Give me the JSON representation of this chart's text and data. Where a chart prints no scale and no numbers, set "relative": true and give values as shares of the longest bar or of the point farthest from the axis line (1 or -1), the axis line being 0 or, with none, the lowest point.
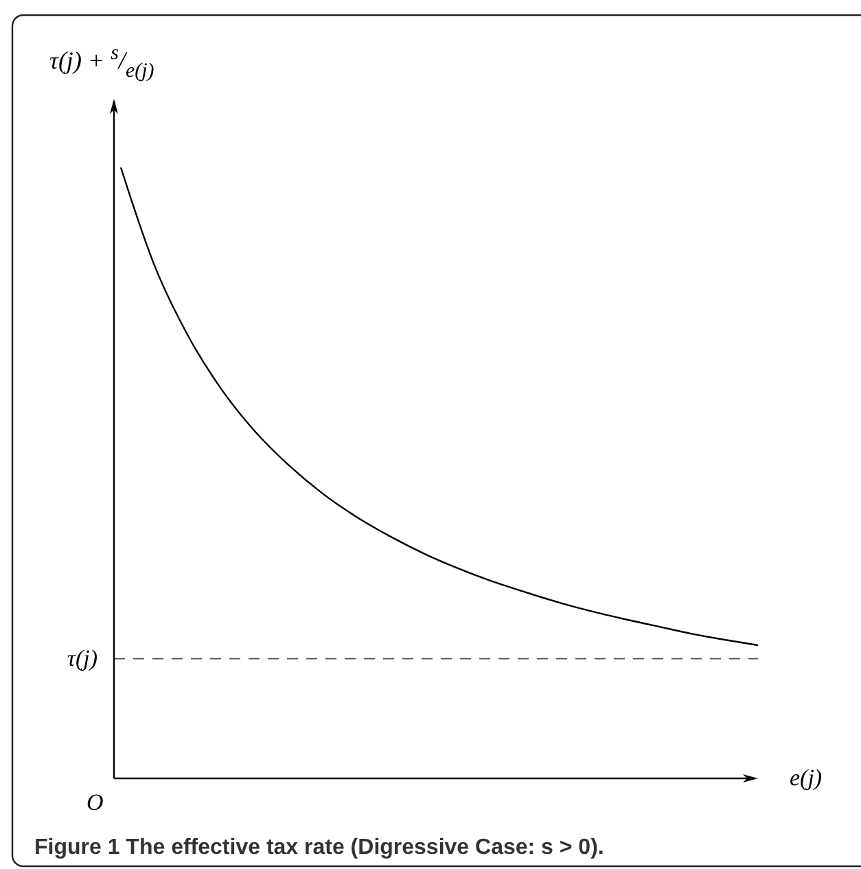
{
  "chart_data": {
    "type": "line",
    "relative": true,
    "ylabel": "τ(j) + $^{s}$/$_{e(j)}$",
    "xlabel": "e(j)",
    "categories": [
      null,
      null,
      null,
      null,
      null,
      null,
      null,
      null,
      null,
      null,
      null,
      null,
      null,
      null,
      null,
      null,
      null,
      null,
      null,
      null
    ],
    "series": [
      {
        "color": "#000000",
        "values": [
          1.0,
          0.84,
          0.725,
          0.637,
          0.568,
          0.513,
          0.467,
          0.429,
          0.397,
          0.369,
          0.345,
          0.324,
          0.306,
          0.289,
          0.274,
          0.261,
          0.249,
          0.237,
          0.227,
          0.218
        ]
      }
    ],
    "ref_lines": [
      {
        "axis": "y",
        "value": 0.196,
        "label": "τ(j)",
        "line_style": "dashed",
        "color": "#000000"
      }
    ],
    "annotations": [
      "O",
      "Figure 1 The effective tax rate (Digressive Case: s > 0)."
    ]
  }
}
